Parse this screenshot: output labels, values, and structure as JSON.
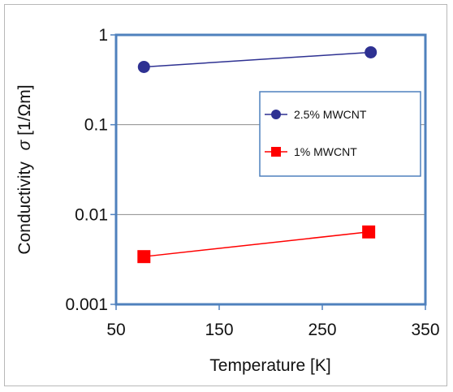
{
  "chart_data": {
    "type": "line",
    "title": "",
    "xlabel": "Temperature [K]",
    "ylabel_text": "Conductivity",
    "ylabel_symbol": "σ",
    "ylabel_units": "[1/Ωm]",
    "x_scale": "linear",
    "y_scale": "log",
    "xlim": [
      50,
      350
    ],
    "ylim": [
      0.001,
      1
    ],
    "x_ticks": [
      50,
      150,
      250,
      350
    ],
    "x_tick_labels": [
      "50",
      "150",
      "250",
      "350"
    ],
    "y_ticks": [
      0.001,
      0.01,
      0.1,
      1
    ],
    "y_tick_labels": [
      "0.001",
      "0.01",
      "0.1",
      "1"
    ],
    "grid": "horizontal",
    "legend_position": "right",
    "series": [
      {
        "name": "2.5% MWCNT",
        "marker": "circle",
        "color": "#2e3192",
        "x": [
          77,
          297
        ],
        "y": [
          0.44,
          0.64
        ]
      },
      {
        "name": "1% MWCNT",
        "marker": "square",
        "color": "#ff0000",
        "x": [
          77,
          295
        ],
        "y": [
          0.0034,
          0.0064
        ]
      }
    ],
    "plot_border_color": "#4f81bd",
    "line_color_series1": "#2e3192",
    "line_color_series2": "#ff0000"
  }
}
